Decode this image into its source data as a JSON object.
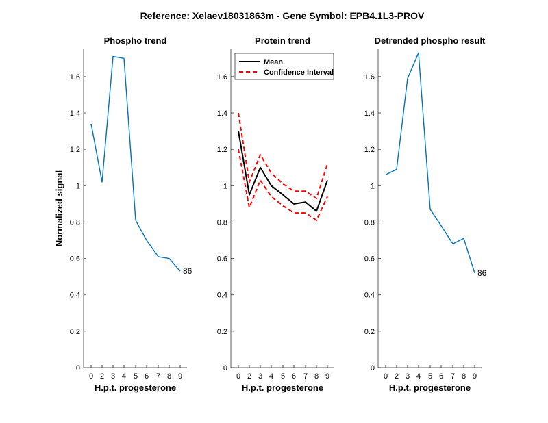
{
  "figure": {
    "title": "Reference:  Xelaev18031863m - Gene Symbol:  EPB4.1L3-PROV"
  },
  "colors": {
    "phospho_line": "#0072bd",
    "mean_line": "#000000",
    "ci_line": "#ff0000",
    "axis": "#262626"
  },
  "chart_data": [
    {
      "type": "line",
      "title": "Phospho trend",
      "xlabel": "H.p.t. progesterone",
      "ylabel": "Normalized signal",
      "xticks": [
        "0",
        "2",
        "3",
        "4",
        "5",
        "6",
        "7",
        "8",
        "9"
      ],
      "yticks": [
        "0",
        "0.2",
        "0.4",
        "0.6",
        "0.8",
        "1",
        "1.2",
        "1.4",
        "1.6"
      ],
      "ylim": [
        0,
        1.75
      ],
      "grid": false,
      "series": [
        {
          "values": [
            1.34,
            1.02,
            1.71,
            1.7,
            0.81,
            0.7,
            0.61,
            0.6,
            0.53
          ]
        }
      ],
      "end_label": "86"
    },
    {
      "type": "line",
      "title": "Protein trend",
      "xlabel": "H.p.t. progesterone",
      "ylabel": "",
      "xticks": [
        "0",
        "2",
        "3",
        "4",
        "5",
        "6",
        "7",
        "8",
        "9"
      ],
      "yticks": [
        "0",
        "0.2",
        "0.4",
        "0.6",
        "0.8",
        "1",
        "1.2",
        "1.4",
        "1.6"
      ],
      "ylim": [
        0,
        1.75
      ],
      "grid": false,
      "legend": {
        "placement": "top-left",
        "entries": [
          "Mean",
          "Confidence Interval"
        ]
      },
      "series": [
        {
          "name": "Mean",
          "values": [
            1.3,
            0.95,
            1.1,
            1.0,
            0.95,
            0.9,
            0.91,
            0.86,
            1.03
          ]
        },
        {
          "name": "Confidence Interval",
          "bound": "upper",
          "values": [
            1.4,
            1.02,
            1.17,
            1.07,
            1.01,
            0.97,
            0.97,
            0.93,
            1.12
          ]
        },
        {
          "name": "Confidence Interval",
          "bound": "lower",
          "values": [
            1.2,
            0.88,
            1.03,
            0.94,
            0.89,
            0.85,
            0.85,
            0.81,
            0.94
          ]
        }
      ]
    },
    {
      "type": "line",
      "title": "Detrended phospho result",
      "xlabel": "H.p.t. progesterone",
      "ylabel": "",
      "xticks": [
        "0",
        "2",
        "3",
        "4",
        "5",
        "6",
        "7",
        "8",
        "9"
      ],
      "yticks": [
        "0",
        "0.2",
        "0.4",
        "0.6",
        "0.8",
        "1",
        "1.2",
        "1.4",
        "1.6"
      ],
      "ylim": [
        0,
        1.75
      ],
      "grid": false,
      "series": [
        {
          "values": [
            1.06,
            1.09,
            1.59,
            1.73,
            0.87,
            0.78,
            0.68,
            0.71,
            0.52
          ]
        }
      ],
      "end_label": "86"
    }
  ]
}
